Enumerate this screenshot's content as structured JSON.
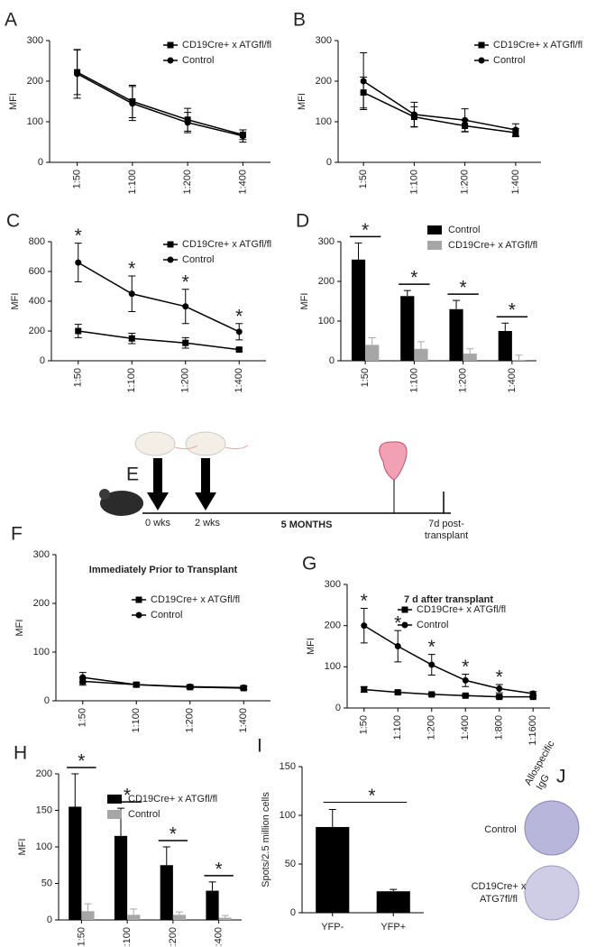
{
  "chart_data": [
    {
      "type": "line",
      "panel": "A",
      "ylabel": "MFI",
      "categories": [
        "1:50",
        "1:100",
        "1:200",
        "1:400"
      ],
      "ylim": [
        0,
        300
      ],
      "yticks": [
        0,
        100,
        200,
        300
      ],
      "series": [
        {
          "name": "CD19Cre+ x ATGfl/fl",
          "color": "#000000",
          "marker": "square",
          "values": [
            222,
            150,
            105,
            68
          ],
          "errors": [
            55,
            40,
            28,
            12
          ]
        },
        {
          "name": "Control",
          "color": "#000000",
          "marker": "circle",
          "values": [
            218,
            145,
            98,
            65
          ],
          "errors": [
            60,
            42,
            25,
            15
          ]
        }
      ]
    },
    {
      "type": "line",
      "panel": "B",
      "ylabel": "MFI",
      "categories": [
        "1:50",
        "1:100",
        "1:200",
        "1:400"
      ],
      "ylim": [
        0,
        300
      ],
      "yticks": [
        0,
        100,
        200,
        300
      ],
      "series": [
        {
          "name": "CD19Cre+ x ATGfl/fl",
          "color": "#000000",
          "marker": "square",
          "values": [
            172,
            112,
            90,
            73
          ],
          "errors": [
            38,
            25,
            15,
            10
          ]
        },
        {
          "name": "Control",
          "color": "#000000",
          "marker": "circle",
          "values": [
            200,
            118,
            104,
            80
          ],
          "errors": [
            70,
            30,
            28,
            15
          ]
        }
      ]
    },
    {
      "type": "line",
      "panel": "C",
      "ylabel": "MFI",
      "categories": [
        "1:50",
        "1:100",
        "1:200",
        "1:400"
      ],
      "ylim": [
        0,
        800
      ],
      "yticks": [
        0,
        200,
        400,
        600,
        800
      ],
      "series": [
        {
          "name": "CD19Cre+ x ATGfl/fl",
          "color": "#000000",
          "marker": "square",
          "values": [
            200,
            150,
            120,
            75
          ],
          "errors": [
            45,
            35,
            35,
            10
          ]
        },
        {
          "name": "Control",
          "color": "#000000",
          "marker": "circle",
          "values": [
            660,
            450,
            365,
            195
          ],
          "errors": [
            130,
            120,
            115,
            55
          ]
        }
      ],
      "significance": [
        "*",
        "*",
        "*",
        "*"
      ]
    },
    {
      "type": "bar",
      "panel": "D",
      "ylabel": "MFI",
      "categories": [
        "1:50",
        "1:100",
        "1:200",
        "1:400"
      ],
      "ylim": [
        0,
        300
      ],
      "yticks": [
        0,
        100,
        200,
        300
      ],
      "series": [
        {
          "name": "Control",
          "color": "#000000",
          "values": [
            255,
            163,
            130,
            75
          ],
          "errors": [
            42,
            14,
            22,
            20
          ]
        },
        {
          "name": "CD19Cre+ x ATGfl/fl",
          "color": "#a6a6a6",
          "values": [
            40,
            30,
            18,
            2
          ],
          "errors": [
            18,
            18,
            12,
            12
          ]
        }
      ],
      "significance": [
        "*",
        "*",
        "*",
        "*"
      ]
    },
    {
      "type": "line",
      "panel": "F",
      "title": "Immediately Prior to Transplant",
      "ylabel": "MFI",
      "categories": [
        "1:50",
        "1:100",
        "1:200",
        "1:400"
      ],
      "ylim": [
        0,
        300
      ],
      "yticks": [
        0,
        100,
        200,
        300
      ],
      "series": [
        {
          "name": "CD19Cre+ x ATGfl/fl",
          "color": "#000000",
          "marker": "square",
          "values": [
            40,
            33,
            28,
            26
          ],
          "errors": [
            8,
            4,
            3,
            3
          ]
        },
        {
          "name": "Control",
          "color": "#000000",
          "marker": "circle",
          "values": [
            48,
            33,
            29,
            27
          ],
          "errors": [
            10,
            4,
            3,
            3
          ]
        }
      ]
    },
    {
      "type": "line",
      "panel": "G",
      "title": "7 d after transplant",
      "ylabel": "MFI",
      "categories": [
        "1:50",
        "1:100",
        "1:200",
        "1:400",
        "1:800",
        "1:1600"
      ],
      "ylim": [
        0,
        300
      ],
      "yticks": [
        0,
        100,
        200,
        300
      ],
      "series": [
        {
          "name": "CD19Cre+ x ATGfl/fl",
          "color": "#000000",
          "marker": "square",
          "values": [
            45,
            38,
            33,
            30,
            27,
            27
          ],
          "errors": [
            7,
            4,
            3,
            3,
            3,
            3
          ]
        },
        {
          "name": "Control",
          "color": "#000000",
          "marker": "circle",
          "values": [
            200,
            150,
            105,
            67,
            47,
            35
          ],
          "errors": [
            42,
            38,
            25,
            15,
            10,
            5
          ]
        }
      ],
      "significance": [
        "*",
        "*",
        "*",
        "*",
        "*",
        null
      ]
    },
    {
      "type": "bar",
      "panel": "H",
      "ylabel": "MFI",
      "categories": [
        "1:50",
        "1:100",
        "1:200",
        "1:400"
      ],
      "ylim": [
        0,
        200
      ],
      "yticks": [
        0,
        50,
        100,
        150,
        200
      ],
      "series": [
        {
          "name": "CD19Cre+ x ATGfl/fl",
          "color": "#000000",
          "values": [
            155,
            115,
            75,
            40
          ],
          "errors": [
            45,
            38,
            25,
            12
          ]
        },
        {
          "name": "Control",
          "color": "#a6a6a6",
          "values": [
            12,
            7,
            7,
            3
          ],
          "errors": [
            10,
            8,
            4,
            3
          ]
        }
      ],
      "significance": [
        "*",
        "*",
        "*",
        "*"
      ]
    },
    {
      "type": "bar",
      "panel": "I",
      "ylabel": "Spots/2.5 million cells",
      "categories": [
        "YFP-",
        "YFP+"
      ],
      "ylim": [
        0,
        150
      ],
      "yticks": [
        0,
        50,
        100,
        150
      ],
      "color": "#000000",
      "values": [
        88,
        22
      ],
      "errors": [
        18,
        2
      ],
      "significance": "*"
    }
  ],
  "timeline": {
    "panel": "E",
    "labels": [
      "0 wks",
      "2 wks"
    ],
    "duration": "5 MONTHS",
    "endpoint": [
      "7d post-",
      "transplant"
    ]
  },
  "elispot": {
    "panel": "J",
    "column": [
      "Allospecific",
      "IgG"
    ],
    "rows": [
      [
        "Control"
      ],
      [
        "CD19Cre+ x",
        "ATG7fl/fl"
      ]
    ]
  }
}
